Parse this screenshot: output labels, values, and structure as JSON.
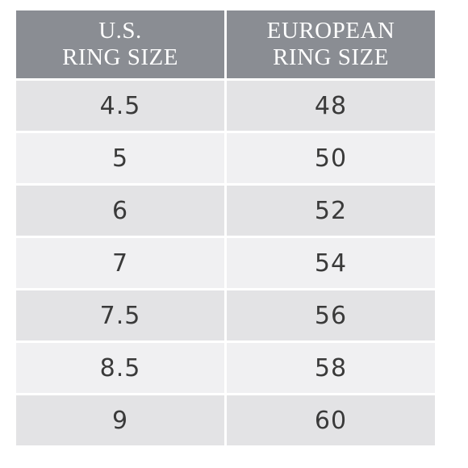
{
  "table": {
    "headers": [
      [
        "U.S.",
        "RING SIZE"
      ],
      [
        "EUROPEAN",
        "RING SIZE"
      ]
    ],
    "rows": [
      [
        "4.5",
        "48"
      ],
      [
        "5",
        "50"
      ],
      [
        "6",
        "52"
      ],
      [
        "7",
        "54"
      ],
      [
        "7.5",
        "56"
      ],
      [
        "8.5",
        "58"
      ],
      [
        "9",
        "60"
      ]
    ],
    "colors": {
      "header_bg": "#8a8d93",
      "header_text": "#ffffff",
      "row_odd_bg": "#e3e3e5",
      "row_even_bg": "#f0f0f2",
      "cell_text": "#3a3a3a"
    }
  }
}
